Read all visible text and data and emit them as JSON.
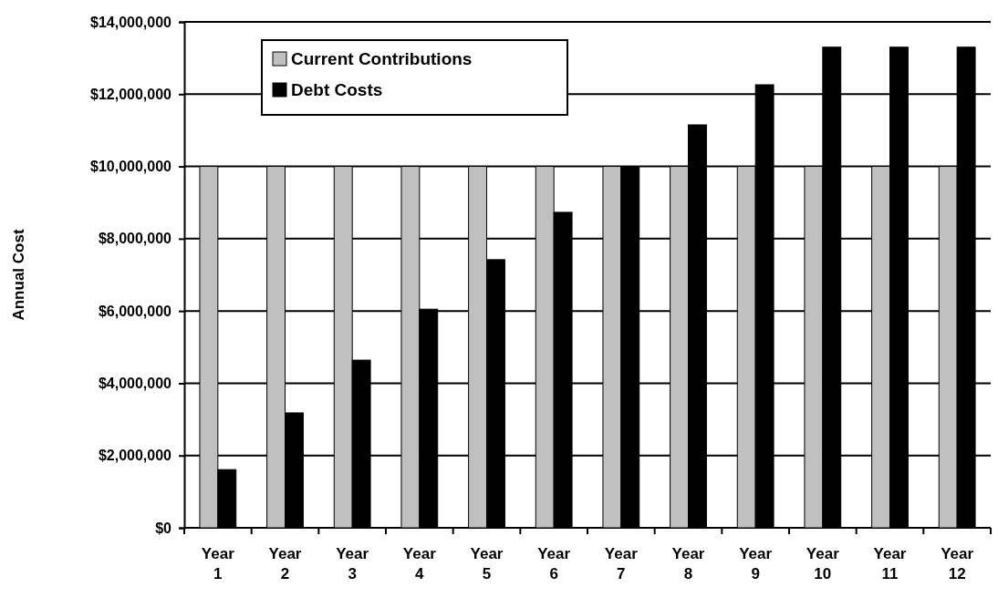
{
  "chart_data": {
    "type": "bar",
    "ylabel": "Annual Cost",
    "categories": [
      "Year 1",
      "Year 2",
      "Year 3",
      "Year 4",
      "Year 5",
      "Year 6",
      "Year 7",
      "Year 8",
      "Year 9",
      "Year 10",
      "Year 11",
      "Year 12"
    ],
    "series": [
      {
        "name": "Current Contributions",
        "color": "#c0c0c0",
        "values": [
          10000000,
          10000000,
          10000000,
          10000000,
          10000000,
          10000000,
          10000000,
          10000000,
          10000000,
          10000000,
          10000000,
          10000000
        ]
      },
      {
        "name": "Debt Costs",
        "color": "#000000",
        "values": [
          1610000,
          3180000,
          4640000,
          6050000,
          7420000,
          8730000,
          10000000,
          11150000,
          12260000,
          13300000,
          13300000,
          13300000
        ]
      }
    ],
    "ylim": [
      0,
      14000000
    ],
    "yticks": [
      {
        "value": 0,
        "label": "$0"
      },
      {
        "value": 2000000,
        "label": "$2,000,000"
      },
      {
        "value": 4000000,
        "label": "$4,000,000"
      },
      {
        "value": 6000000,
        "label": "$6,000,000"
      },
      {
        "value": 8000000,
        "label": "$8,000,000"
      },
      {
        "value": 10000000,
        "label": "$10,000,000"
      },
      {
        "value": 12000000,
        "label": "$12,000,000"
      },
      {
        "value": 14000000,
        "label": "$14,000,000"
      }
    ],
    "grid": "y",
    "legend": "top left"
  }
}
